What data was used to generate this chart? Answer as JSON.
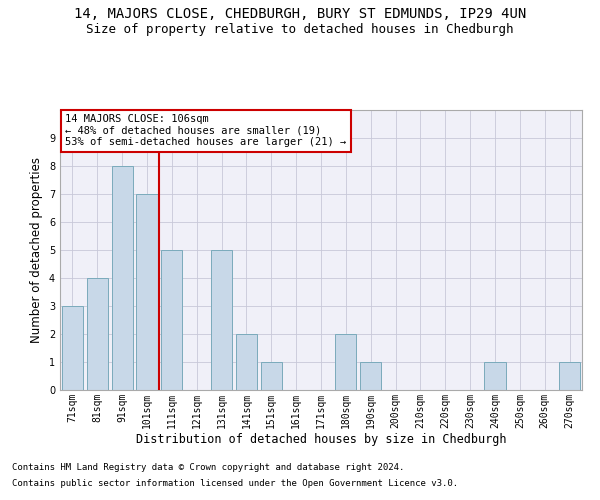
{
  "title": "14, MAJORS CLOSE, CHEDBURGH, BURY ST EDMUNDS, IP29 4UN",
  "subtitle": "Size of property relative to detached houses in Chedburgh",
  "xlabel": "Distribution of detached houses by size in Chedburgh",
  "ylabel": "Number of detached properties",
  "categories": [
    "71sqm",
    "81sqm",
    "91sqm",
    "101sqm",
    "111sqm",
    "121sqm",
    "131sqm",
    "141sqm",
    "151sqm",
    "161sqm",
    "171sqm",
    "180sqm",
    "190sqm",
    "200sqm",
    "210sqm",
    "220sqm",
    "230sqm",
    "240sqm",
    "250sqm",
    "260sqm",
    "270sqm"
  ],
  "values": [
    3,
    4,
    8,
    7,
    5,
    0,
    5,
    2,
    1,
    0,
    0,
    2,
    1,
    0,
    0,
    0,
    0,
    1,
    0,
    0,
    1
  ],
  "bar_color": "#c8d8e8",
  "bar_edgecolor": "#7aaabb",
  "bar_linewidth": 0.7,
  "red_line_x": 3.5,
  "annotation_line1": "14 MAJORS CLOSE: 106sqm",
  "annotation_line2": "← 48% of detached houses are smaller (19)",
  "annotation_line3": "53% of semi-detached houses are larger (21) →",
  "annotation_box_edgecolor": "#cc0000",
  "annotation_box_facecolor": "#ffffff",
  "ylim": [
    0,
    10
  ],
  "yticks": [
    0,
    1,
    2,
    3,
    4,
    5,
    6,
    7,
    8,
    9
  ],
  "grid_color": "#c8c8d8",
  "background_color": "#f0f0f8",
  "footer_line1": "Contains HM Land Registry data © Crown copyright and database right 2024.",
  "footer_line2": "Contains public sector information licensed under the Open Government Licence v3.0.",
  "title_fontsize": 10,
  "subtitle_fontsize": 9,
  "ylabel_fontsize": 8.5,
  "xlabel_fontsize": 8.5,
  "tick_fontsize": 7,
  "annotation_fontsize": 7.5,
  "footer_fontsize": 6.5
}
